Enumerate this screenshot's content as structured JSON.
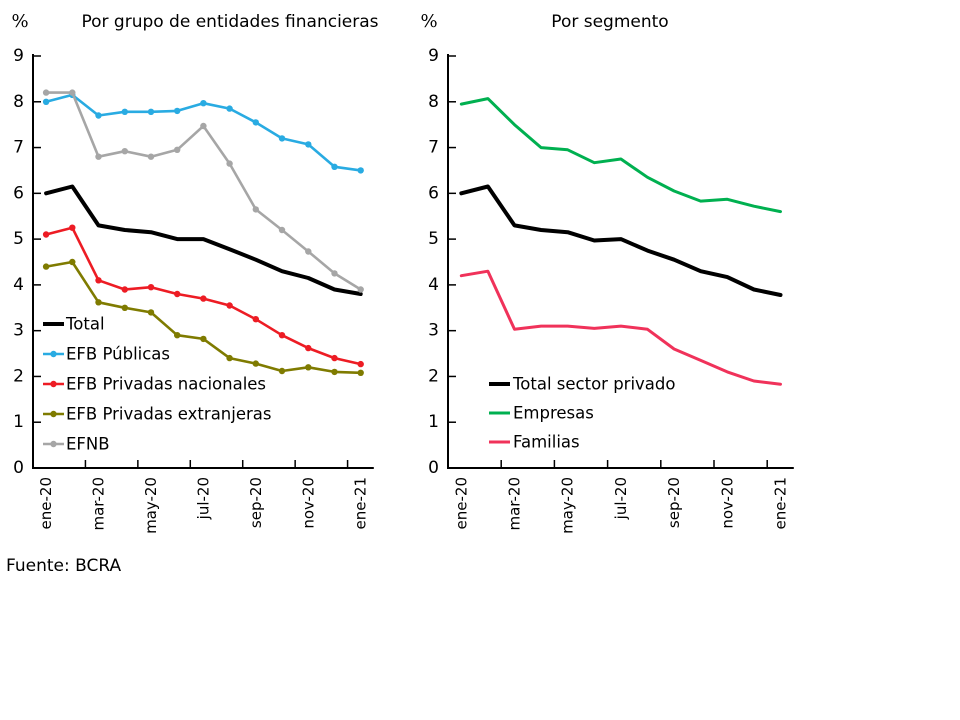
{
  "page": {
    "source_label": "Fuente: BCRA",
    "background": "#ffffff"
  },
  "chart_data": [
    {
      "type": "line",
      "title": "Por grupo de entidades financieras",
      "unit_label": "%",
      "ylabel": "",
      "xlabel": "",
      "ylim": [
        0,
        9
      ],
      "y_ticks": [
        0,
        1,
        2,
        3,
        4,
        5,
        6,
        7,
        8,
        9
      ],
      "grid": false,
      "legend_position": "inside-bottom-left",
      "categories": [
        "ene-20",
        "feb-20",
        "mar-20",
        "abr-20",
        "may-20",
        "jun-20",
        "jul-20",
        "ago-20",
        "sep-20",
        "oct-20",
        "nov-20",
        "dic-20",
        "ene-21"
      ],
      "x_tick_labels": [
        "ene-20",
        "mar-20",
        "may-20",
        "jul-20",
        "sep-20",
        "nov-20",
        "ene-21"
      ],
      "series": [
        {
          "name": "Total",
          "color": "#000000",
          "width": 4,
          "markers": false,
          "values": [
            6.0,
            6.15,
            5.3,
            5.2,
            5.15,
            5.0,
            5.0,
            4.78,
            4.55,
            4.3,
            4.15,
            3.9,
            3.8
          ]
        },
        {
          "name": "EFB Públicas",
          "color": "#29ABE2",
          "width": 2.6,
          "markers": true,
          "values": [
            8.0,
            8.15,
            7.7,
            7.78,
            7.78,
            7.8,
            7.97,
            7.85,
            7.55,
            7.2,
            7.07,
            6.58,
            6.5
          ]
        },
        {
          "name": "EFB Privadas nacionales",
          "color": "#ED1C24",
          "width": 2.6,
          "markers": true,
          "values": [
            5.1,
            5.25,
            4.1,
            3.9,
            3.95,
            3.8,
            3.7,
            3.55,
            3.25,
            2.9,
            2.62,
            2.4,
            2.27
          ]
        },
        {
          "name": "EFB Privadas extranjeras",
          "color": "#7F7B00",
          "width": 2.6,
          "markers": true,
          "values": [
            4.4,
            4.5,
            3.62,
            3.5,
            3.4,
            2.9,
            2.82,
            2.4,
            2.28,
            2.12,
            2.2,
            2.1,
            2.08
          ]
        },
        {
          "name": "EFNB",
          "color": "#A6A6A6",
          "width": 2.6,
          "markers": true,
          "values": [
            8.2,
            8.2,
            6.8,
            6.92,
            6.8,
            6.95,
            7.47,
            6.65,
            5.65,
            5.2,
            4.73,
            4.25,
            3.9
          ]
        }
      ]
    },
    {
      "type": "line",
      "title": "Por segmento",
      "unit_label": "%",
      "ylabel": "",
      "xlabel": "",
      "ylim": [
        0,
        9
      ],
      "y_ticks": [
        0,
        1,
        2,
        3,
        4,
        5,
        6,
        7,
        8,
        9
      ],
      "grid": false,
      "legend_position": "inside-bottom-left",
      "categories": [
        "ene-20",
        "feb-20",
        "mar-20",
        "abr-20",
        "may-20",
        "jun-20",
        "jul-20",
        "ago-20",
        "sep-20",
        "oct-20",
        "nov-20",
        "dic-20",
        "ene-21"
      ],
      "x_tick_labels": [
        "ene-20",
        "mar-20",
        "may-20",
        "jul-20",
        "sep-20",
        "nov-20",
        "ene-21"
      ],
      "series": [
        {
          "name": "Total sector privado",
          "color": "#000000",
          "width": 4,
          "markers": false,
          "values": [
            6.0,
            6.15,
            5.3,
            5.2,
            5.15,
            4.97,
            5.0,
            4.75,
            4.55,
            4.3,
            4.17,
            3.9,
            3.78
          ]
        },
        {
          "name": "Empresas",
          "color": "#00B050",
          "width": 3,
          "markers": false,
          "values": [
            7.95,
            8.07,
            7.5,
            7.0,
            6.95,
            6.67,
            6.75,
            6.35,
            6.05,
            5.83,
            5.87,
            5.72,
            5.6
          ]
        },
        {
          "name": "Familias",
          "color": "#F0325A",
          "width": 3,
          "markers": false,
          "values": [
            4.2,
            4.3,
            3.03,
            3.1,
            3.1,
            3.05,
            3.1,
            3.03,
            2.6,
            2.35,
            2.1,
            1.9,
            1.83
          ]
        }
      ]
    }
  ]
}
